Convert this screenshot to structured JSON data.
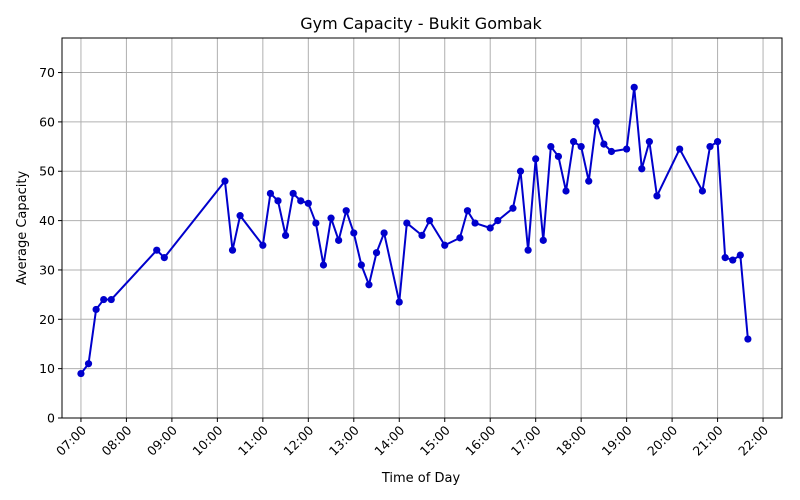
{
  "chart_data": {
    "type": "line",
    "title": "Gym Capacity - Bukit Gombak",
    "xlabel": "Time of Day",
    "ylabel": "Average Capacity",
    "ylim": [
      0,
      77
    ],
    "yticks": [
      0,
      10,
      20,
      30,
      40,
      50,
      60,
      70
    ],
    "xlim": [
      "06:35",
      "22:25"
    ],
    "xticks": [
      "07:00",
      "08:00",
      "09:00",
      "10:00",
      "11:00",
      "12:00",
      "13:00",
      "14:00",
      "15:00",
      "16:00",
      "17:00",
      "18:00",
      "19:00",
      "20:00",
      "21:00",
      "22:00"
    ],
    "grid": true,
    "color": "#0000cc",
    "series": [
      {
        "name": "",
        "points": [
          [
            "07:00",
            9
          ],
          [
            "07:10",
            11
          ],
          [
            "07:20",
            22
          ],
          [
            "07:30",
            24
          ],
          [
            "07:40",
            24
          ],
          [
            "08:40",
            34
          ],
          [
            "08:50",
            32.5
          ],
          [
            "10:10",
            48
          ],
          [
            "10:20",
            34
          ],
          [
            "10:30",
            41
          ],
          [
            "11:00",
            35
          ],
          [
            "11:10",
            45.5
          ],
          [
            "11:20",
            44
          ],
          [
            "11:30",
            37
          ],
          [
            "11:40",
            45.5
          ],
          [
            "11:50",
            44
          ],
          [
            "12:00",
            43.5
          ],
          [
            "12:10",
            39.5
          ],
          [
            "12:20",
            31
          ],
          [
            "12:30",
            40.5
          ],
          [
            "12:40",
            36
          ],
          [
            "12:50",
            42
          ],
          [
            "13:00",
            37.5
          ],
          [
            "13:10",
            31
          ],
          [
            "13:20",
            27
          ],
          [
            "13:30",
            33.5
          ],
          [
            "13:40",
            37.5
          ],
          [
            "14:00",
            23.5
          ],
          [
            "14:10",
            39.5
          ],
          [
            "14:30",
            37
          ],
          [
            "14:40",
            40
          ],
          [
            "15:00",
            35
          ],
          [
            "15:20",
            36.5
          ],
          [
            "15:30",
            42
          ],
          [
            "15:40",
            39.5
          ],
          [
            "16:00",
            38.5
          ],
          [
            "16:10",
            40
          ],
          [
            "16:30",
            42.5
          ],
          [
            "16:40",
            50
          ],
          [
            "16:50",
            34
          ],
          [
            "17:00",
            52.5
          ],
          [
            "17:10",
            36
          ],
          [
            "17:20",
            55
          ],
          [
            "17:30",
            53
          ],
          [
            "17:40",
            46
          ],
          [
            "17:50",
            56
          ],
          [
            "18:00",
            55
          ],
          [
            "18:10",
            48
          ],
          [
            "18:20",
            60
          ],
          [
            "18:30",
            55.5
          ],
          [
            "18:40",
            54
          ],
          [
            "19:00",
            54.5
          ],
          [
            "19:10",
            67
          ],
          [
            "19:20",
            50.5
          ],
          [
            "19:30",
            56
          ],
          [
            "19:40",
            45
          ],
          [
            "20:10",
            54.5
          ],
          [
            "20:40",
            46
          ],
          [
            "20:50",
            55
          ],
          [
            "21:00",
            56
          ],
          [
            "21:10",
            32.5
          ],
          [
            "21:20",
            32
          ],
          [
            "21:30",
            33
          ],
          [
            "21:40",
            16
          ]
        ]
      }
    ]
  }
}
